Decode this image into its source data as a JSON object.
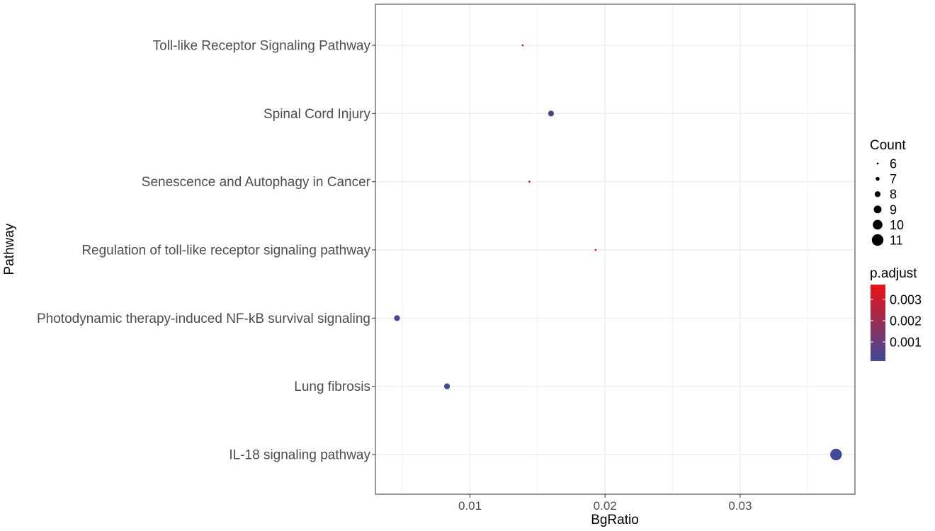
{
  "chart_data": {
    "type": "scatter",
    "xlabel": "BgRatio",
    "ylabel": "Pathway",
    "xlim": [
      0.003,
      0.0385
    ],
    "x_ticks": [
      0.01,
      0.02,
      0.03
    ],
    "x_tick_labels": [
      "0.01",
      "0.02",
      "0.03"
    ],
    "grid": true,
    "categories": [
      "IL-18 signaling pathway",
      "Lung fibrosis",
      "Photodynamic therapy-induced NF-kB survival signaling",
      "Regulation of toll-like receptor signaling pathway",
      "Senescence and Autophagy in Cancer",
      "Spinal Cord Injury",
      "Toll-like Receptor Signaling Pathway"
    ],
    "points": [
      {
        "pathway": "IL-18 signaling pathway",
        "x": 0.0371,
        "count": 11,
        "p_adjust": 0.0001
      },
      {
        "pathway": "Lung fibrosis",
        "x": 0.0083,
        "count": 8,
        "p_adjust": 0.0001
      },
      {
        "pathway": "Photodynamic therapy-induced NF-kB survival signaling",
        "x": 0.0046,
        "count": 8,
        "p_adjust": 0.0002
      },
      {
        "pathway": "Regulation of toll-like receptor signaling pathway",
        "x": 0.0193,
        "count": 6,
        "p_adjust": 0.0036
      },
      {
        "pathway": "Senescence and Autophagy in Cancer",
        "x": 0.0144,
        "count": 6,
        "p_adjust": 0.0025
      },
      {
        "pathway": "Spinal Cord Injury",
        "x": 0.016,
        "count": 8,
        "p_adjust": 0.0006
      },
      {
        "pathway": "Toll-like Receptor Signaling Pathway",
        "x": 0.0139,
        "count": 6,
        "p_adjust": 0.0029
      }
    ],
    "legend_placement": "right",
    "size_legend": {
      "title": "Count",
      "values": [
        6,
        7,
        8,
        9,
        10,
        11
      ],
      "labels": [
        "6",
        "7",
        "8",
        "9",
        "10",
        "11"
      ]
    },
    "color_legend": {
      "title": "p.adjust",
      "min": 0.0001,
      "max": 0.0037,
      "low_color": "#3F4A9A",
      "high_color": "#EE1111",
      "ticks": [
        0.003,
        0.002,
        0.001
      ],
      "tick_labels": [
        "0.003",
        "0.002",
        "0.001"
      ]
    }
  }
}
